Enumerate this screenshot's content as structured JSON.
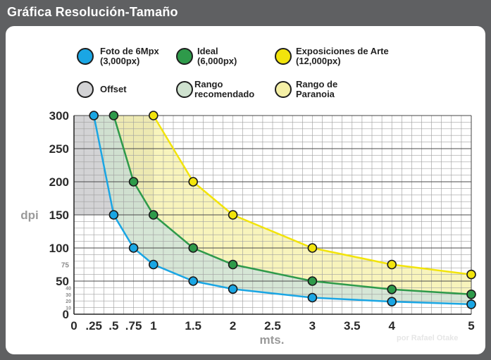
{
  "title": "Gráfica Resolución-Tamaño",
  "credit": "por Rafael Otake",
  "legend": {
    "foto": "Foto de 6Mpx\n(3,000px)",
    "ideal": "Ideal\n(6,000px)",
    "arte": "Exposiciones de Arte\n(12,000px)",
    "offset": "Offset",
    "rango_rec": "Rango\nrecomendado",
    "rango_par": "Rango de\nParanoia"
  },
  "colors": {
    "foto": "#1aa6e4",
    "ideal": "#2e9a4a",
    "arte": "#f2e40c",
    "offset": "#d3d3d5",
    "rango_rec": "#cfe2cf",
    "rango_par": "#f5f0a6"
  },
  "chart_data": {
    "type": "line",
    "xlabel": "mts.",
    "ylabel": "dpi",
    "xlim": [
      0,
      5
    ],
    "ylim": [
      0,
      300
    ],
    "x_ticks": [
      "0",
      ".25",
      ".5",
      ".75",
      "1",
      "1.5",
      "2",
      "2.5",
      "3",
      "3.5",
      "4",
      "5"
    ],
    "x_tick_values": [
      0,
      0.25,
      0.5,
      0.75,
      1,
      1.5,
      2,
      2.5,
      3,
      3.5,
      4,
      5
    ],
    "y_ticks_major": [
      "0",
      "50",
      "100",
      "150",
      "200",
      "250",
      "300"
    ],
    "y_ticks_minor": [
      "10",
      "20",
      "30",
      "40",
      "75"
    ],
    "series": [
      {
        "name": "Foto de 6Mpx (3,000px)",
        "x": [
          0.25,
          0.5,
          0.75,
          1,
          1.5,
          2,
          3,
          4,
          5
        ],
        "y": [
          300,
          150,
          100,
          75,
          50,
          38,
          25,
          19,
          15
        ]
      },
      {
        "name": "Ideal (6,000px)",
        "x": [
          0.5,
          0.75,
          1,
          1.5,
          2,
          3,
          4,
          5
        ],
        "y": [
          300,
          200,
          150,
          100,
          75,
          50,
          37.5,
          30
        ]
      },
      {
        "name": "Exposiciones de Arte (12,000px)",
        "x": [
          1,
          1.5,
          2,
          3,
          4,
          5
        ],
        "y": [
          300,
          200,
          150,
          100,
          75,
          60
        ]
      }
    ],
    "regions": [
      {
        "name": "Offset",
        "x": [
          0,
          1
        ],
        "y": [
          150,
          300
        ]
      },
      {
        "name": "Rango recomendado",
        "between": [
          "Foto de 6Mpx (3,000px)",
          "Ideal (6,000px)"
        ]
      },
      {
        "name": "Rango de Paranoia",
        "between": [
          "Ideal (6,000px)",
          "Exposiciones de Arte (12,000px)"
        ]
      }
    ]
  }
}
